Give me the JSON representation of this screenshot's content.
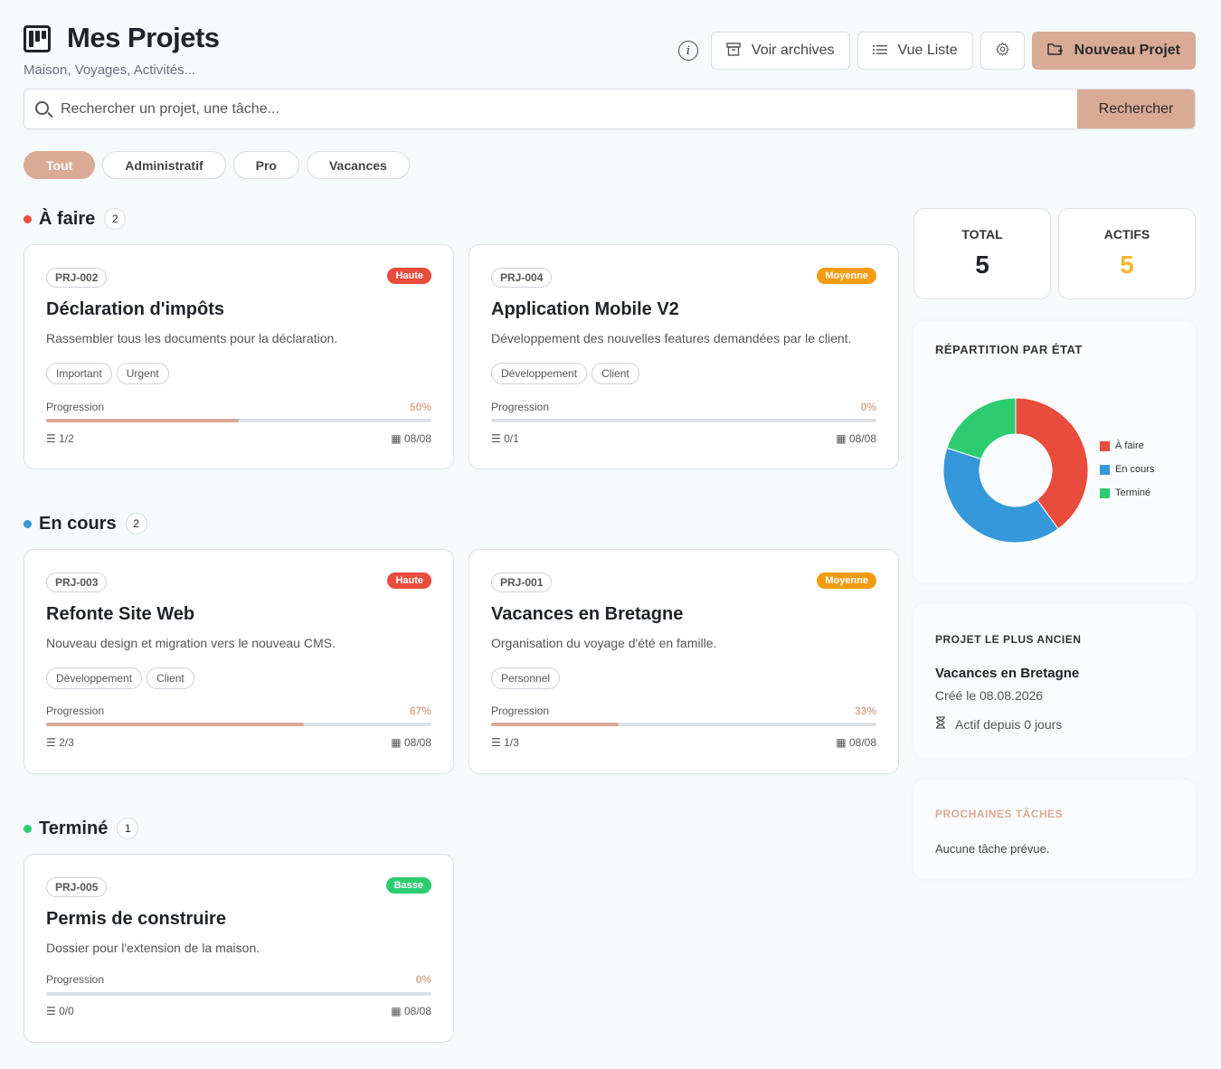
{
  "header": {
    "title": "Mes Projets",
    "subtitle": "Maison, Voyages, Activités...",
    "info_icon": "info-icon",
    "buttons": {
      "archives": "Voir archives",
      "list_view": "Vue Liste",
      "new_project": "Nouveau Projet"
    }
  },
  "search": {
    "placeholder": "Rechercher un projet, une tâche...",
    "button": "Rechercher"
  },
  "filters": [
    "Tout",
    "Administratif",
    "Pro",
    "Vacances"
  ],
  "sections": {
    "todo": {
      "title": "À faire",
      "count": "2",
      "color": "#e74c3c"
    },
    "inprogress": {
      "title": "En cours",
      "count": "2",
      "color": "#3498db"
    },
    "done": {
      "title": "Terminé",
      "count": "1",
      "color": "#2ecc71"
    }
  },
  "progress_label": "Progression",
  "cards": [
    {
      "code": "PRJ-002",
      "priority": "Haute",
      "priority_color": "#e74c3c",
      "title": "Déclaration d'impôts",
      "description": "Rassembler tous les documents pour la déclaration.",
      "tags": [
        "Important",
        "Urgent"
      ],
      "progress": "50%",
      "progress_value": 50,
      "tasks": "1/2",
      "date": "08/08"
    },
    {
      "code": "PRJ-004",
      "priority": "Moyenne",
      "priority_color": "#f39c12",
      "title": "Application Mobile V2",
      "description": "Développement des nouvelles features demandées par le client.",
      "tags": [
        "Développement",
        "Client"
      ],
      "progress": "0%",
      "progress_value": 0,
      "tasks": "0/1",
      "date": "08/08"
    },
    {
      "code": "PRJ-003",
      "priority": "Haute",
      "priority_color": "#e74c3c",
      "title": "Refonte Site Web",
      "description": "Nouveau design et migration vers le nouveau CMS.",
      "tags": [
        "Développement",
        "Client"
      ],
      "progress": "67%",
      "progress_value": 67,
      "tasks": "2/3",
      "date": "08/08"
    },
    {
      "code": "PRJ-001",
      "priority": "Moyenne",
      "priority_color": "#f39c12",
      "title": "Vacances en Bretagne",
      "description": "Organisation du voyage d'été en famille.",
      "tags": [
        "Personnel"
      ],
      "progress": "33%",
      "progress_value": 33,
      "tasks": "1/3",
      "date": "08/08"
    },
    {
      "code": "PRJ-005",
      "priority": "Basse",
      "priority_color": "#2ecc71",
      "title": "Permis de construire",
      "description": "Dossier pour l'extension de la maison.",
      "tags": [],
      "progress": "0%",
      "progress_value": 0,
      "tasks": "0/0",
      "date": "08/08"
    }
  ],
  "stats": {
    "total_label": "TOTAL",
    "total_value": "5",
    "active_label": "ACTIFS",
    "active_value": "5",
    "active_color": "#f5b82e"
  },
  "chart_data": {
    "type": "pie",
    "title": "RÉPARTITION PAR ÉTAT",
    "donut": true,
    "categories": [
      "À faire",
      "En cours",
      "Terminé"
    ],
    "values": [
      2,
      2,
      1
    ],
    "colors": [
      "#e74c3c",
      "#3498db",
      "#2ecc71"
    ],
    "legend": "right"
  },
  "oldest": {
    "label": "PROJET LE PLUS ANCIEN",
    "name": "Vacances en Bretagne",
    "created": "Créé le 08.08.2026",
    "active_since": "Actif depuis 0 jours"
  },
  "upcoming": {
    "label": "PROCHAINES TÂCHES",
    "empty": "Aucune tâche prévue."
  }
}
